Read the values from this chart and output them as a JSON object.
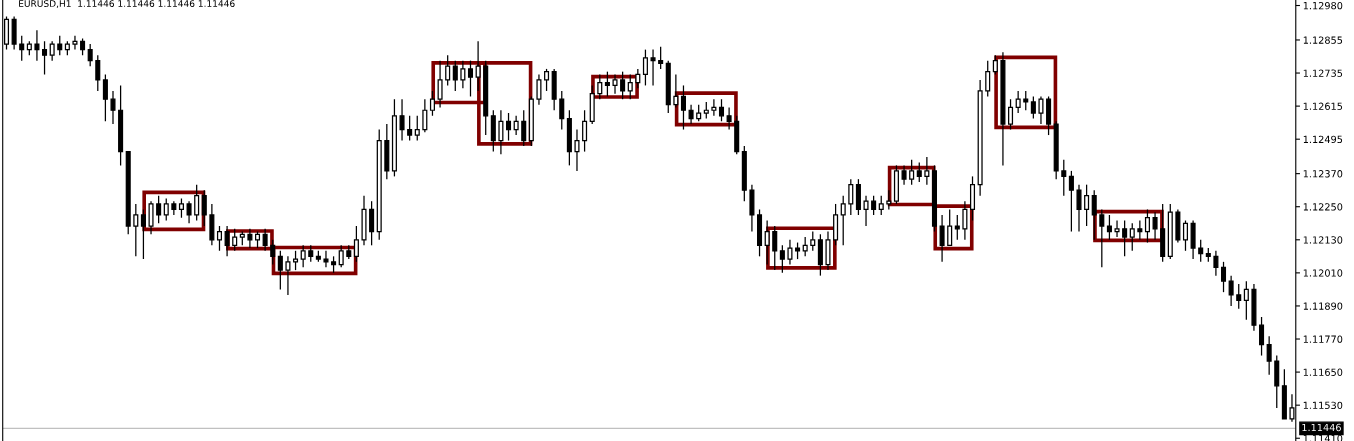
{
  "chart_data": {
    "type": "candlestick",
    "title": "EURUSD,H1  1.11446 1.11446 1.11446 1.11446",
    "categories": [
      null,
      null,
      null,
      null,
      null,
      null,
      null,
      null,
      null,
      null,
      null,
      null,
      null,
      null,
      null,
      null,
      null,
      null,
      null,
      null,
      null,
      null,
      null,
      null,
      null,
      null,
      null,
      null,
      null,
      null,
      null,
      null,
      null,
      null,
      null,
      null,
      null,
      null,
      null,
      null,
      null,
      null,
      null,
      null,
      null,
      null,
      null,
      null,
      null,
      null,
      null,
      null,
      null,
      null,
      null,
      null,
      null,
      null,
      null,
      null,
      null,
      null,
      null,
      null,
      null,
      null,
      null,
      null,
      null,
      null,
      null,
      null,
      null,
      null,
      null,
      null,
      null,
      null,
      null,
      null,
      null,
      null,
      null,
      null,
      null,
      null,
      null,
      null,
      null,
      null,
      null,
      null,
      null,
      null,
      null,
      null,
      null,
      null,
      null,
      null,
      null,
      null,
      null,
      null,
      null,
      null,
      null,
      null,
      null,
      null,
      null,
      null,
      null,
      null,
      null,
      null,
      null,
      null,
      null,
      null,
      null,
      null,
      null,
      null,
      null,
      null,
      null,
      null,
      null,
      null,
      null,
      null,
      null,
      null,
      null,
      null,
      null,
      null,
      null,
      null,
      null,
      null,
      null,
      null,
      null,
      null,
      null,
      null,
      null,
      null,
      null,
      null,
      null,
      null,
      null,
      null,
      null,
      null,
      null,
      null,
      null,
      null,
      null,
      null,
      null,
      null,
      null,
      null,
      null,
      null
    ],
    "ohlc": [
      [
        1.1284,
        1.1294,
        1.1282,
        1.1293
      ],
      [
        1.1293,
        1.1294,
        1.1282,
        1.1284
      ],
      [
        1.1284,
        1.1287,
        1.1278,
        1.1282
      ],
      [
        1.1282,
        1.1285,
        1.128,
        1.1284
      ],
      [
        1.1284,
        1.1289,
        1.1278,
        1.1282
      ],
      [
        1.1282,
        1.1285,
        1.1273,
        1.128
      ],
      [
        1.128,
        1.1285,
        1.1278,
        1.1284
      ],
      [
        1.1284,
        1.1287,
        1.128,
        1.1282
      ],
      [
        1.1282,
        1.1285,
        1.128,
        1.1284
      ],
      [
        1.1284,
        1.1287,
        1.1282,
        1.1285
      ],
      [
        1.1285,
        1.1286,
        1.128,
        1.1282
      ],
      [
        1.1282,
        1.1284,
        1.1276,
        1.1278
      ],
      [
        1.1278,
        1.128,
        1.1267,
        1.1271
      ],
      [
        1.1271,
        1.1273,
        1.1256,
        1.1264
      ],
      [
        1.1264,
        1.1267,
        1.1255,
        1.126
      ],
      [
        1.126,
        1.1269,
        1.124,
        1.1245
      ],
      [
        1.1245,
        1.1245,
        1.1215,
        1.1218
      ],
      [
        1.1218,
        1.1226,
        1.1207,
        1.1222
      ],
      [
        1.1222,
        1.1224,
        1.1206,
        1.1218
      ],
      [
        1.1218,
        1.1227,
        1.1215,
        1.1226
      ],
      [
        1.1226,
        1.1229,
        1.1219,
        1.1222
      ],
      [
        1.1222,
        1.1228,
        1.122,
        1.1226
      ],
      [
        1.1226,
        1.1227,
        1.1222,
        1.1224
      ],
      [
        1.1224,
        1.1228,
        1.1221,
        1.1226
      ],
      [
        1.1226,
        1.1227,
        1.1219,
        1.1222
      ],
      [
        1.1222,
        1.1233,
        1.122,
        1.1229
      ],
      [
        1.1229,
        1.1231,
        1.1218,
        1.1222
      ],
      [
        1.1222,
        1.1226,
        1.1211,
        1.1213
      ],
      [
        1.1213,
        1.1218,
        1.1209,
        1.1216
      ],
      [
        1.1216,
        1.1218,
        1.1207,
        1.1211
      ],
      [
        1.1211,
        1.1217,
        1.1209,
        1.1214
      ],
      [
        1.1214,
        1.1216,
        1.1211,
        1.1215
      ],
      [
        1.1215,
        1.1217,
        1.121,
        1.1213
      ],
      [
        1.1213,
        1.1216,
        1.121,
        1.1215
      ],
      [
        1.1215,
        1.1217,
        1.1209,
        1.1211
      ],
      [
        1.1211,
        1.1213,
        1.1204,
        1.1207
      ],
      [
        1.1207,
        1.1209,
        1.1195,
        1.1202
      ],
      [
        1.1202,
        1.1207,
        1.1193,
        1.1205
      ],
      [
        1.1205,
        1.1209,
        1.1202,
        1.1206
      ],
      [
        1.1206,
        1.1211,
        1.1203,
        1.1209
      ],
      [
        1.1209,
        1.1211,
        1.1205,
        1.1207
      ],
      [
        1.1207,
        1.1209,
        1.1205,
        1.1206
      ],
      [
        1.1206,
        1.1209,
        1.1203,
        1.1205
      ],
      [
        1.1205,
        1.1207,
        1.1201,
        1.1204
      ],
      [
        1.1204,
        1.1211,
        1.1203,
        1.1209
      ],
      [
        1.1209,
        1.1211,
        1.1206,
        1.1207
      ],
      [
        1.1207,
        1.1218,
        1.1205,
        1.1213
      ],
      [
        1.1213,
        1.1229,
        1.1211,
        1.1224
      ],
      [
        1.1224,
        1.1227,
        1.1211,
        1.1216
      ],
      [
        1.1216,
        1.1253,
        1.1213,
        1.1249
      ],
      [
        1.1249,
        1.1255,
        1.1235,
        1.1238
      ],
      [
        1.1238,
        1.1264,
        1.1236,
        1.1258
      ],
      [
        1.1258,
        1.1264,
        1.1249,
        1.1253
      ],
      [
        1.1253,
        1.1258,
        1.1249,
        1.1251
      ],
      [
        1.1251,
        1.1258,
        1.1249,
        1.1253
      ],
      [
        1.1253,
        1.1264,
        1.1252,
        1.126
      ],
      [
        1.126,
        1.1267,
        1.1258,
        1.1264
      ],
      [
        1.1264,
        1.1278,
        1.1261,
        1.1271
      ],
      [
        1.1271,
        1.128,
        1.1269,
        1.1276
      ],
      [
        1.1276,
        1.1278,
        1.1267,
        1.1271
      ],
      [
        1.1271,
        1.1278,
        1.1268,
        1.1275
      ],
      [
        1.1275,
        1.1278,
        1.1265,
        1.1272
      ],
      [
        1.1272,
        1.1285,
        1.1267,
        1.1276
      ],
      [
        1.1276,
        1.1278,
        1.1251,
        1.1258
      ],
      [
        1.1258,
        1.126,
        1.1245,
        1.1249
      ],
      [
        1.1249,
        1.126,
        1.1244,
        1.1256
      ],
      [
        1.1256,
        1.1259,
        1.1249,
        1.1253
      ],
      [
        1.1253,
        1.1258,
        1.1251,
        1.1256
      ],
      [
        1.1256,
        1.126,
        1.1247,
        1.1249
      ],
      [
        1.1249,
        1.1265,
        1.1247,
        1.1264
      ],
      [
        1.1264,
        1.1273,
        1.1262,
        1.1271
      ],
      [
        1.1271,
        1.1275,
        1.1267,
        1.1274
      ],
      [
        1.1274,
        1.1275,
        1.126,
        1.1264
      ],
      [
        1.1264,
        1.1267,
        1.1253,
        1.1257
      ],
      [
        1.1257,
        1.126,
        1.124,
        1.1245
      ],
      [
        1.1245,
        1.1253,
        1.1238,
        1.1249
      ],
      [
        1.1249,
        1.126,
        1.1245,
        1.1256
      ],
      [
        1.1256,
        1.1269,
        1.1255,
        1.1266
      ],
      [
        1.1266,
        1.1273,
        1.1264,
        1.127
      ],
      [
        1.127,
        1.1274,
        1.1265,
        1.1269
      ],
      [
        1.1269,
        1.1273,
        1.1266,
        1.1271
      ],
      [
        1.1271,
        1.1274,
        1.1264,
        1.1267
      ],
      [
        1.1267,
        1.1273,
        1.1264,
        1.127
      ],
      [
        1.127,
        1.1275,
        1.1268,
        1.1273
      ],
      [
        1.1273,
        1.1282,
        1.1269,
        1.1279
      ],
      [
        1.1279,
        1.1282,
        1.1269,
        1.1278
      ],
      [
        1.1278,
        1.1283,
        1.1275,
        1.1277
      ],
      [
        1.1277,
        1.1278,
        1.1259,
        1.1262
      ],
      [
        1.1262,
        1.1273,
        1.1261,
        1.1265
      ],
      [
        1.1265,
        1.1269,
        1.1253,
        1.126
      ],
      [
        1.126,
        1.1262,
        1.1255,
        1.1257
      ],
      [
        1.1257,
        1.1262,
        1.1256,
        1.1259
      ],
      [
        1.1259,
        1.1263,
        1.1257,
        1.126
      ],
      [
        1.126,
        1.1264,
        1.1258,
        1.1261
      ],
      [
        1.1261,
        1.1264,
        1.1256,
        1.1258
      ],
      [
        1.1258,
        1.1261,
        1.1253,
        1.1256
      ],
      [
        1.1256,
        1.1258,
        1.1244,
        1.1245
      ],
      [
        1.1245,
        1.1247,
        1.1227,
        1.1231
      ],
      [
        1.1231,
        1.1233,
        1.1216,
        1.1222
      ],
      [
        1.1222,
        1.1224,
        1.1207,
        1.1211
      ],
      [
        1.1211,
        1.122,
        1.1204,
        1.1216
      ],
      [
        1.1216,
        1.1218,
        1.1202,
        1.1209
      ],
      [
        1.1209,
        1.1211,
        1.1201,
        1.1206
      ],
      [
        1.1206,
        1.1213,
        1.1204,
        1.121
      ],
      [
        1.121,
        1.1212,
        1.1206,
        1.1209
      ],
      [
        1.1209,
        1.1214,
        1.1207,
        1.1211
      ],
      [
        1.1211,
        1.1216,
        1.1209,
        1.1213
      ],
      [
        1.1213,
        1.1215,
        1.12,
        1.1204
      ],
      [
        1.1204,
        1.1216,
        1.1202,
        1.1213
      ],
      [
        1.1213,
        1.1226,
        1.1211,
        1.1222
      ],
      [
        1.1222,
        1.1229,
        1.1211,
        1.1226
      ],
      [
        1.1226,
        1.1235,
        1.1222,
        1.1233
      ],
      [
        1.1233,
        1.1235,
        1.1222,
        1.1224
      ],
      [
        1.1224,
        1.1229,
        1.1218,
        1.1227
      ],
      [
        1.1227,
        1.1229,
        1.1222,
        1.1224
      ],
      [
        1.1224,
        1.1229,
        1.1222,
        1.1226
      ],
      [
        1.1226,
        1.1231,
        1.1224,
        1.1227
      ],
      [
        1.1227,
        1.124,
        1.1226,
        1.1238
      ],
      [
        1.1238,
        1.124,
        1.1233,
        1.1235
      ],
      [
        1.1235,
        1.1242,
        1.1233,
        1.1238
      ],
      [
        1.1238,
        1.1241,
        1.1234,
        1.1236
      ],
      [
        1.1236,
        1.1243,
        1.1233,
        1.1238
      ],
      [
        1.1238,
        1.124,
        1.1216,
        1.1218
      ],
      [
        1.1218,
        1.1222,
        1.1205,
        1.1211
      ],
      [
        1.1211,
        1.1224,
        1.1211,
        1.1218
      ],
      [
        1.1218,
        1.1222,
        1.1213,
        1.1217
      ],
      [
        1.1217,
        1.1227,
        1.1213,
        1.1224
      ],
      [
        1.1224,
        1.1236,
        1.122,
        1.1233
      ],
      [
        1.1233,
        1.1271,
        1.1229,
        1.1267
      ],
      [
        1.1267,
        1.1278,
        1.1265,
        1.1274
      ],
      [
        1.1274,
        1.128,
        1.1273,
        1.1278
      ],
      [
        1.1278,
        1.1281,
        1.124,
        1.1255
      ],
      [
        1.1255,
        1.1264,
        1.1253,
        1.1261
      ],
      [
        1.1261,
        1.1267,
        1.1259,
        1.1264
      ],
      [
        1.1264,
        1.1267,
        1.126,
        1.1263
      ],
      [
        1.1263,
        1.1265,
        1.1257,
        1.1259
      ],
      [
        1.1259,
        1.1265,
        1.1255,
        1.1264
      ],
      [
        1.1264,
        1.1265,
        1.1251,
        1.1255
      ],
      [
        1.1255,
        1.1256,
        1.1235,
        1.1238
      ],
      [
        1.1238,
        1.1242,
        1.1229,
        1.1236
      ],
      [
        1.1236,
        1.1238,
        1.1216,
        1.1231
      ],
      [
        1.1231,
        1.1233,
        1.1216,
        1.1224
      ],
      [
        1.1224,
        1.1233,
        1.1218,
        1.1229
      ],
      [
        1.1229,
        1.1231,
        1.1213,
        1.1222
      ],
      [
        1.1222,
        1.1224,
        1.1203,
        1.1218
      ],
      [
        1.1218,
        1.1222,
        1.1213,
        1.1216
      ],
      [
        1.1216,
        1.122,
        1.1214,
        1.1217
      ],
      [
        1.1217,
        1.122,
        1.1207,
        1.1214
      ],
      [
        1.1214,
        1.1219,
        1.1209,
        1.1217
      ],
      [
        1.1217,
        1.122,
        1.1213,
        1.1216
      ],
      [
        1.1216,
        1.1224,
        1.1212,
        1.1221
      ],
      [
        1.1221,
        1.1223,
        1.1213,
        1.1217
      ],
      [
        1.1217,
        1.1226,
        1.1205,
        1.1207
      ],
      [
        1.1207,
        1.1226,
        1.1206,
        1.1223
      ],
      [
        1.1223,
        1.1224,
        1.1212,
        1.1213
      ],
      [
        1.1213,
        1.122,
        1.1209,
        1.1219
      ],
      [
        1.1219,
        1.122,
        1.1206,
        1.121
      ],
      [
        1.121,
        1.1213,
        1.1205,
        1.1208
      ],
      [
        1.1208,
        1.121,
        1.1205,
        1.1207
      ],
      [
        1.1207,
        1.1209,
        1.12,
        1.1203
      ],
      [
        1.1203,
        1.1205,
        1.1194,
        1.1198
      ],
      [
        1.1198,
        1.12,
        1.1189,
        1.1193
      ],
      [
        1.1193,
        1.1197,
        1.1188,
        1.1191
      ],
      [
        1.1191,
        1.1198,
        1.1184,
        1.1195
      ],
      [
        1.1195,
        1.1197,
        1.118,
        1.1182
      ],
      [
        1.1182,
        1.1185,
        1.1171,
        1.1175
      ],
      [
        1.1175,
        1.1178,
        1.1164,
        1.1169
      ],
      [
        1.1169,
        1.1171,
        1.1152,
        1.116
      ],
      [
        1.116,
        1.1166,
        1.1148,
        1.1148
      ],
      [
        1.1148,
        1.1157,
        1.1147,
        1.1152
      ]
    ],
    "ylim": [
      1.114,
      1.13
    ],
    "yticks": [
      {
        "value": 1.1298,
        "label": "1.12980"
      },
      {
        "value": 1.12855,
        "label": "1.12855"
      },
      {
        "value": 1.12735,
        "label": "1.12735"
      },
      {
        "value": 1.12615,
        "label": "1.12615"
      },
      {
        "value": 1.12495,
        "label": "1.12495"
      },
      {
        "value": 1.1237,
        "label": "1.12370"
      },
      {
        "value": 1.1225,
        "label": "1.12250"
      },
      {
        "value": 1.1213,
        "label": "1.12130"
      },
      {
        "value": 1.1201,
        "label": "1.12010"
      },
      {
        "value": 1.1189,
        "label": "1.11890"
      },
      {
        "value": 1.1177,
        "label": "1.11770"
      },
      {
        "value": 1.1165,
        "label": "1.11650"
      },
      {
        "value": 1.1153,
        "label": "1.11530"
      },
      {
        "value": 1.1141,
        "label": "1.11410"
      }
    ],
    "ref_lines": [
      {
        "axis": "y",
        "value": 1.11446,
        "label": "1.11446",
        "color": "#c0c0c0"
      }
    ],
    "tick_labels": "y",
    "grid": false
  }
}
